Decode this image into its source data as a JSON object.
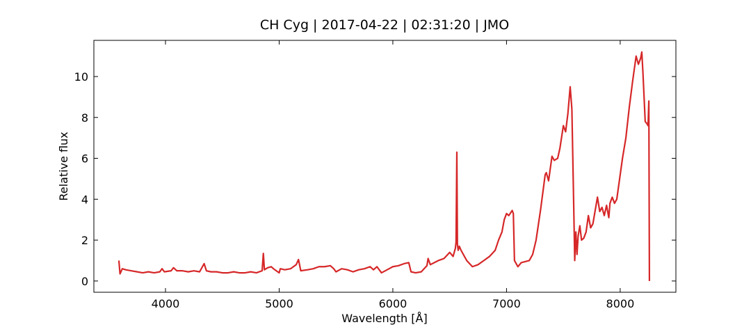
{
  "chart_data": {
    "type": "line",
    "title": "CH Cyg | 2017-04-22 | 02:31:20 | JMO",
    "x_label": "Wavelength [Å]",
    "y_label": "Relative flux",
    "xlim": [
      3370,
      8490
    ],
    "ylim": [
      -0.55,
      11.77
    ],
    "xticks": [
      4000,
      5000,
      6000,
      7000,
      8000
    ],
    "yticks": [
      0,
      2,
      4,
      6,
      8,
      10
    ],
    "grid": false,
    "x": [
      3590,
      3600,
      3620,
      3650,
      3700,
      3750,
      3800,
      3850,
      3900,
      3950,
      3970,
      3990,
      4050,
      4070,
      4100,
      4150,
      4200,
      4250,
      4300,
      4340,
      4360,
      4400,
      4450,
      4500,
      4550,
      4600,
      4650,
      4700,
      4750,
      4800,
      4850,
      4861,
      4870,
      4900,
      4930,
      4950,
      5000,
      5010,
      5050,
      5100,
      5150,
      5170,
      5190,
      5250,
      5300,
      5350,
      5400,
      5450,
      5480,
      5500,
      5550,
      5600,
      5650,
      5700,
      5750,
      5800,
      5830,
      5860,
      5900,
      5950,
      6000,
      6050,
      6100,
      6140,
      6160,
      6200,
      6250,
      6300,
      6310,
      6330,
      6400,
      6450,
      6500,
      6530,
      6550,
      6556,
      6563,
      6568,
      6575,
      6585,
      6600,
      6650,
      6700,
      6750,
      6800,
      6850,
      6900,
      6930,
      6960,
      6980,
      7000,
      7020,
      7050,
      7060,
      7070,
      7100,
      7130,
      7200,
      7230,
      7260,
      7300,
      7340,
      7350,
      7370,
      7400,
      7420,
      7450,
      7470,
      7500,
      7520,
      7540,
      7560,
      7575,
      7590,
      7600,
      7610,
      7620,
      7630,
      7645,
      7660,
      7680,
      7700,
      7720,
      7740,
      7760,
      7800,
      7820,
      7840,
      7860,
      7880,
      7900,
      7910,
      7930,
      7950,
      7970,
      7990,
      8020,
      8050,
      8080,
      8110,
      8140,
      8160,
      8180,
      8190,
      8200,
      8210,
      8220,
      8235,
      8245,
      8252,
      8257
    ],
    "series": [
      {
        "name": "CH Cyg",
        "color": "#d62728",
        "values": [
          1.0,
          0.35,
          0.6,
          0.55,
          0.5,
          0.45,
          0.4,
          0.45,
          0.4,
          0.45,
          0.6,
          0.45,
          0.5,
          0.65,
          0.5,
          0.5,
          0.45,
          0.5,
          0.45,
          0.85,
          0.5,
          0.45,
          0.45,
          0.4,
          0.4,
          0.45,
          0.4,
          0.4,
          0.45,
          0.4,
          0.5,
          1.35,
          0.55,
          0.65,
          0.7,
          0.6,
          0.4,
          0.6,
          0.55,
          0.6,
          0.8,
          1.05,
          0.5,
          0.55,
          0.6,
          0.7,
          0.7,
          0.75,
          0.6,
          0.45,
          0.6,
          0.55,
          0.45,
          0.55,
          0.6,
          0.7,
          0.55,
          0.7,
          0.4,
          0.55,
          0.7,
          0.75,
          0.85,
          0.9,
          0.45,
          0.4,
          0.45,
          0.75,
          1.1,
          0.8,
          1.0,
          1.1,
          1.4,
          1.2,
          1.6,
          1.9,
          6.3,
          1.8,
          1.5,
          1.7,
          1.5,
          1.0,
          0.7,
          0.8,
          1.0,
          1.2,
          1.5,
          2.0,
          2.4,
          3.0,
          3.3,
          3.2,
          3.45,
          3.3,
          1.0,
          0.7,
          0.9,
          1.0,
          1.3,
          2.0,
          3.5,
          5.2,
          5.3,
          4.9,
          6.1,
          5.9,
          6.0,
          6.5,
          7.6,
          7.3,
          8.2,
          9.5,
          8.4,
          4.0,
          1.0,
          2.4,
          1.3,
          2.2,
          2.7,
          2.0,
          2.1,
          2.4,
          3.2,
          2.6,
          2.8,
          4.1,
          3.4,
          3.6,
          3.2,
          3.7,
          3.1,
          3.8,
          4.1,
          3.8,
          4.0,
          4.8,
          6.0,
          7.0,
          8.5,
          9.8,
          11.0,
          10.6,
          10.9,
          11.2,
          10.2,
          9.0,
          7.8,
          7.7,
          7.6,
          8.8,
          0.0
        ]
      }
    ]
  }
}
